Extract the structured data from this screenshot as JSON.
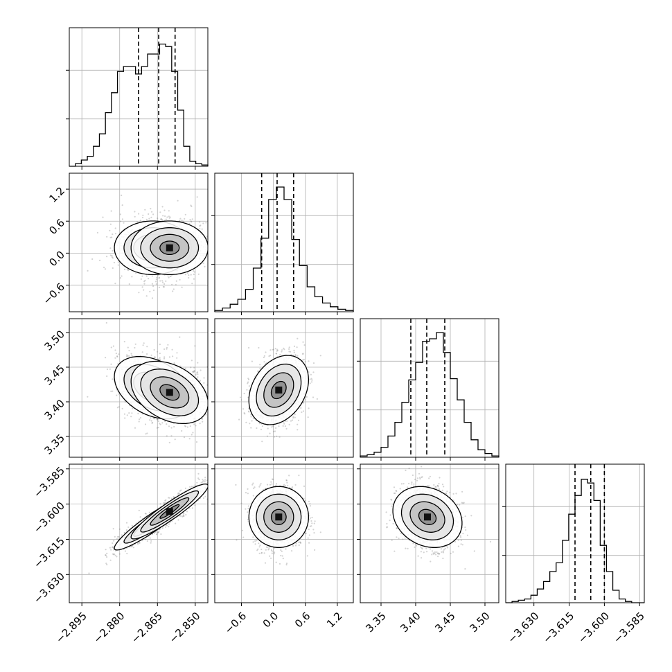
{
  "chart_data": {
    "type": "corner",
    "parameters": [
      {
        "mean": -2.8635,
        "sd": 0.0085,
        "quantiles": [
          -2.8725,
          -2.8645,
          -2.858
        ],
        "range": [
          -2.9,
          -2.845
        ],
        "ticks": [
          -2.895,
          -2.88,
          -2.865,
          -2.85
        ],
        "tick_labels": [
          "−2.895",
          "−2.880",
          "−2.865",
          "−2.850"
        ],
        "hist": [
          0,
          0.02,
          0.05,
          0.08,
          0.16,
          0.26,
          0.43,
          0.59,
          0.76,
          0.8,
          0.8,
          0.74,
          0.8,
          0.9,
          0.9,
          0.98,
          0.96,
          0.76,
          0.45,
          0.16,
          0.04,
          0.02,
          0.01
        ]
      },
      {
        "mean": 0.1,
        "sd": 0.28,
        "quantiles": [
          -0.22,
          0.07,
          0.38
        ],
        "range": [
          -1.1,
          1.5
        ],
        "ticks": [
          -0.6,
          0.0,
          0.6,
          1.2
        ],
        "tick_labels": [
          "−0.6",
          "0.0",
          "0.6",
          "1.2"
        ],
        "hist": [
          0.01,
          0.03,
          0.06,
          0.1,
          0.18,
          0.35,
          0.59,
          0.9,
          1.0,
          0.9,
          0.58,
          0.37,
          0.2,
          0.12,
          0.07,
          0.04,
          0.02,
          0.01
        ]
      },
      {
        "mean": 3.417,
        "sd": 0.025,
        "quantiles": [
          3.393,
          3.416,
          3.442
        ],
        "range": [
          3.32,
          3.52
        ],
        "ticks": [
          3.35,
          3.4,
          3.45,
          3.5
        ],
        "tick_labels": [
          "3.35",
          "3.40",
          "3.45",
          "3.50"
        ],
        "hist": [
          0.01,
          0.02,
          0.04,
          0.08,
          0.17,
          0.28,
          0.44,
          0.62,
          0.76,
          0.93,
          0.95,
          1.0,
          0.84,
          0.63,
          0.46,
          0.28,
          0.14,
          0.06,
          0.03,
          0.01
        ]
      },
      {
        "mean": -3.6055,
        "sd": 0.0065,
        "quantiles": [
          -3.6125,
          -3.6058,
          -3.6
        ],
        "range": [
          -3.642,
          -3.583
        ],
        "ticks": [
          -3.63,
          -3.615,
          -3.6,
          -3.585
        ],
        "tick_labels": [
          "−3.630",
          "−3.615",
          "−3.600",
          "−3.585"
        ],
        "hist": [
          0,
          0.01,
          0.02,
          0.03,
          0.06,
          0.11,
          0.17,
          0.25,
          0.32,
          0.5,
          0.71,
          0.86,
          0.99,
          0.96,
          0.82,
          0.46,
          0.25,
          0.1,
          0.03,
          0.01,
          0,
          0
        ]
      }
    ],
    "correlations": [
      {
        "i": 0,
        "j": 1,
        "rho": 0.0,
        "bimodal": true
      },
      {
        "i": 0,
        "j": 2,
        "rho": -0.35,
        "bimodal": true
      },
      {
        "i": 0,
        "j": 3,
        "rho": 0.93,
        "bimodal": true
      },
      {
        "i": 1,
        "j": 2,
        "rho": 0.3
      },
      {
        "i": 1,
        "j": 3,
        "rho": 0.0
      },
      {
        "i": 2,
        "j": 3,
        "rho": -0.2
      }
    ],
    "contour_levels": [
      0.5,
      1.0,
      1.5,
      2.0
    ],
    "quantile_lines": "dashed",
    "grid": true,
    "colors": {
      "line": "#000000",
      "grid": "#b0b0b0",
      "points": "#808080"
    }
  }
}
